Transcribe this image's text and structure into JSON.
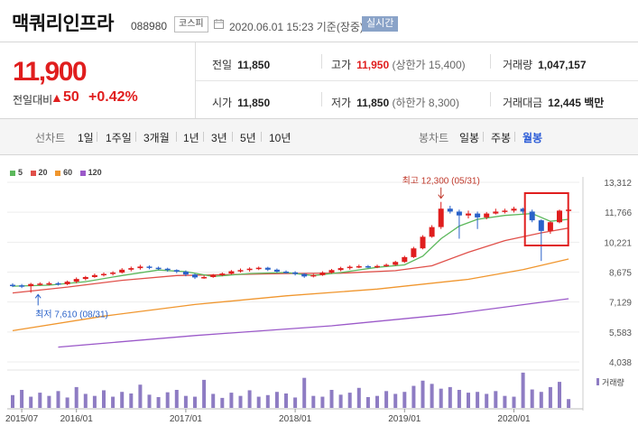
{
  "stock": {
    "name": "맥쿼리인프라",
    "code": "088980",
    "market": "코스피",
    "datetime": "2020.06.01 15:23 기준(장중)",
    "realtime_label": "실시간",
    "price": "11,900",
    "change_label": "전일대비",
    "change_arrow": "▲",
    "change_value": "50",
    "change_pct": "+0.42%"
  },
  "quote": {
    "prev_close": {
      "label": "전일",
      "value": "11,850"
    },
    "high": {
      "label": "고가",
      "value": "11,950",
      "extra": "(상한가 15,400)"
    },
    "volume": {
      "label": "거래량",
      "value": "1,047,157"
    },
    "open": {
      "label": "시가",
      "value": "11,850"
    },
    "low": {
      "label": "저가",
      "value": "11,850",
      "extra": "(하한가 8,300)"
    },
    "amount": {
      "label": "거래대금",
      "value": "12,445 백만"
    }
  },
  "tabs": {
    "line_label": "선차트",
    "line_items": [
      "1일",
      "1주일",
      "3개월",
      "1년",
      "3년",
      "5년",
      "10년"
    ],
    "candle_label": "봉차트",
    "candle_items": [
      "일봉",
      "주봉",
      "월봉"
    ],
    "candle_active": "월봉"
  },
  "colors": {
    "up": "#e01e1e",
    "down": "#2a62c9",
    "ma5": "#5cb85c",
    "ma20": "#e0504a",
    "ma60": "#f0962e",
    "ma120": "#9b59c9",
    "volume": "#8e7cc3"
  },
  "chart_data": {
    "type": "candlestick",
    "period": "monthly",
    "ma_legend": [
      "5",
      "20",
      "60",
      "120"
    ],
    "y_ticks": [
      "13,312",
      "11,766",
      "10,221",
      "8,675",
      "7,129",
      "5,583",
      "4,038"
    ],
    "x_ticks": [
      "2015/07",
      "2016/01",
      "2017/01",
      "2018/01",
      "2019/01",
      "2020/01"
    ],
    "volume_label": "거래량",
    "annotations": {
      "high": "최고 12,300 (05/31)",
      "low": "최저 7,610 (08/31)"
    },
    "candles": [
      {
        "d": "2015/06",
        "o": 8020,
        "c": 7990,
        "h": 8100,
        "l": 7900
      },
      {
        "d": "2015/07",
        "o": 7990,
        "c": 7950,
        "h": 8060,
        "l": 7850
      },
      {
        "d": "2015/08",
        "o": 7950,
        "c": 8060,
        "h": 8120,
        "l": 7610
      },
      {
        "d": "2015/09",
        "o": 8060,
        "c": 8080,
        "h": 8150,
        "l": 7980
      },
      {
        "d": "2015/10",
        "o": 8080,
        "c": 8100,
        "h": 8180,
        "l": 8000
      },
      {
        "d": "2015/11",
        "o": 8100,
        "c": 8050,
        "h": 8160,
        "l": 7980
      },
      {
        "d": "2015/12",
        "o": 8050,
        "c": 8180,
        "h": 8240,
        "l": 8000
      },
      {
        "d": "2016/01",
        "o": 8180,
        "c": 8320,
        "h": 8400,
        "l": 8100
      },
      {
        "d": "2016/02",
        "o": 8320,
        "c": 8420,
        "h": 8480,
        "l": 8250
      },
      {
        "d": "2016/03",
        "o": 8420,
        "c": 8520,
        "h": 8600,
        "l": 8380
      },
      {
        "d": "2016/04",
        "o": 8520,
        "c": 8580,
        "h": 8660,
        "l": 8450
      },
      {
        "d": "2016/05",
        "o": 8580,
        "c": 8650,
        "h": 8720,
        "l": 8500
      },
      {
        "d": "2016/06",
        "o": 8650,
        "c": 8800,
        "h": 8880,
        "l": 8600
      },
      {
        "d": "2016/07",
        "o": 8800,
        "c": 8880,
        "h": 8960,
        "l": 8720
      },
      {
        "d": "2016/08",
        "o": 8880,
        "c": 8960,
        "h": 9050,
        "l": 8800
      },
      {
        "d": "2016/09",
        "o": 8960,
        "c": 8900,
        "h": 9020,
        "l": 8820
      },
      {
        "d": "2016/10",
        "o": 8900,
        "c": 8850,
        "h": 8960,
        "l": 8780
      },
      {
        "d": "2016/11",
        "o": 8850,
        "c": 8780,
        "h": 8900,
        "l": 8700
      },
      {
        "d": "2016/12",
        "o": 8780,
        "c": 8700,
        "h": 8820,
        "l": 8620
      },
      {
        "d": "2017/01",
        "o": 8700,
        "c": 8550,
        "h": 8760,
        "l": 8460
      },
      {
        "d": "2017/02",
        "o": 8550,
        "c": 8400,
        "h": 8600,
        "l": 8320
      },
      {
        "d": "2017/03",
        "o": 8400,
        "c": 8420,
        "h": 8500,
        "l": 8330
      },
      {
        "d": "2017/04",
        "o": 8420,
        "c": 8520,
        "h": 8580,
        "l": 8380
      },
      {
        "d": "2017/05",
        "o": 8520,
        "c": 8600,
        "h": 8660,
        "l": 8460
      },
      {
        "d": "2017/06",
        "o": 8600,
        "c": 8720,
        "h": 8780,
        "l": 8550
      },
      {
        "d": "2017/07",
        "o": 8720,
        "c": 8780,
        "h": 8860,
        "l": 8650
      },
      {
        "d": "2017/08",
        "o": 8780,
        "c": 8850,
        "h": 8920,
        "l": 8700
      },
      {
        "d": "2017/09",
        "o": 8850,
        "c": 8900,
        "h": 8960,
        "l": 8780
      },
      {
        "d": "2017/10",
        "o": 8900,
        "c": 8800,
        "h": 8950,
        "l": 8730
      },
      {
        "d": "2017/11",
        "o": 8800,
        "c": 8700,
        "h": 8860,
        "l": 8640
      },
      {
        "d": "2017/12",
        "o": 8700,
        "c": 8660,
        "h": 8760,
        "l": 8600
      },
      {
        "d": "2018/01",
        "o": 8660,
        "c": 8580,
        "h": 8720,
        "l": 8500
      },
      {
        "d": "2018/02",
        "o": 8580,
        "c": 8450,
        "h": 8620,
        "l": 8380
      },
      {
        "d": "2018/03",
        "o": 8450,
        "c": 8520,
        "h": 8580,
        "l": 8400
      },
      {
        "d": "2018/04",
        "o": 8520,
        "c": 8650,
        "h": 8720,
        "l": 8480
      },
      {
        "d": "2018/05",
        "o": 8650,
        "c": 8780,
        "h": 8840,
        "l": 8600
      },
      {
        "d": "2018/06",
        "o": 8780,
        "c": 8880,
        "h": 8950,
        "l": 8720
      },
      {
        "d": "2018/07",
        "o": 8880,
        "c": 8950,
        "h": 9020,
        "l": 8800
      },
      {
        "d": "2018/08",
        "o": 8950,
        "c": 8980,
        "h": 9060,
        "l": 8880
      },
      {
        "d": "2018/09",
        "o": 8980,
        "c": 8940,
        "h": 9040,
        "l": 8880
      },
      {
        "d": "2018/10",
        "o": 8940,
        "c": 8990,
        "h": 9060,
        "l": 8880
      },
      {
        "d": "2018/11",
        "o": 8990,
        "c": 9050,
        "h": 9120,
        "l": 8950
      },
      {
        "d": "2018/12",
        "o": 9050,
        "c": 9200,
        "h": 9260,
        "l": 9000
      },
      {
        "d": "2019/01",
        "o": 9200,
        "c": 9450,
        "h": 9520,
        "l": 9150
      },
      {
        "d": "2019/02",
        "o": 9450,
        "c": 9900,
        "h": 9980,
        "l": 9400
      },
      {
        "d": "2019/03",
        "o": 9900,
        "c": 10500,
        "h": 10580,
        "l": 9850
      },
      {
        "d": "2019/04",
        "o": 10500,
        "c": 11000,
        "h": 11100,
        "l": 10450
      },
      {
        "d": "2019/05",
        "o": 11000,
        "c": 11950,
        "h": 12300,
        "l": 10900
      },
      {
        "d": "2019/06",
        "o": 11950,
        "c": 11800,
        "h": 12100,
        "l": 11700
      },
      {
        "d": "2019/07",
        "o": 11800,
        "c": 11600,
        "h": 11900,
        "l": 10400
      },
      {
        "d": "2019/08",
        "o": 11600,
        "c": 11700,
        "h": 11850,
        "l": 11450
      },
      {
        "d": "2019/09",
        "o": 11700,
        "c": 11500,
        "h": 11800,
        "l": 10900
      },
      {
        "d": "2019/10",
        "o": 11500,
        "c": 11700,
        "h": 11780,
        "l": 11400
      },
      {
        "d": "2019/11",
        "o": 11700,
        "c": 11800,
        "h": 11950,
        "l": 11650
      },
      {
        "d": "2019/12",
        "o": 11800,
        "c": 11850,
        "h": 11950,
        "l": 11700
      },
      {
        "d": "2020/01",
        "o": 11850,
        "c": 11950,
        "h": 12050,
        "l": 11750
      },
      {
        "d": "2020/02",
        "o": 11950,
        "c": 11800,
        "h": 12000,
        "l": 11700
      },
      {
        "d": "2020/03",
        "o": 11800,
        "c": 11350,
        "h": 11900,
        "l": 11250
      },
      {
        "d": "2020/04",
        "o": 11350,
        "c": 10800,
        "h": 11400,
        "l": 9250
      },
      {
        "d": "2020/05",
        "o": 10800,
        "c": 11250,
        "h": 11300,
        "l": 10650
      },
      {
        "d": "2020/06",
        "o": 11250,
        "c": 11850,
        "h": 11900,
        "l": 11200
      },
      {
        "d": "2020/07",
        "o": 11850,
        "c": 11900,
        "h": 11950,
        "l": 11850
      }
    ],
    "volumes": [
      32,
      45,
      28,
      38,
      30,
      42,
      26,
      52,
      35,
      30,
      44,
      28,
      40,
      36,
      58,
      33,
      27,
      39,
      45,
      30,
      28,
      70,
      35,
      25,
      38,
      30,
      44,
      28,
      32,
      40,
      36,
      26,
      75,
      30,
      28,
      45,
      33,
      38,
      50,
      27,
      30,
      42,
      35,
      40,
      55,
      68,
      60,
      48,
      52,
      45,
      38,
      40,
      35,
      42,
      30,
      28,
      88,
      46,
      40,
      52,
      65,
      22
    ],
    "ma5": [
      {
        "i": 0,
        "v": 7950
      },
      {
        "i": 4,
        "v": 8000
      },
      {
        "i": 8,
        "v": 8180
      },
      {
        "i": 12,
        "v": 8500
      },
      {
        "i": 16,
        "v": 8780
      },
      {
        "i": 19,
        "v": 8700
      },
      {
        "i": 22,
        "v": 8450
      },
      {
        "i": 26,
        "v": 8600
      },
      {
        "i": 30,
        "v": 8650
      },
      {
        "i": 33,
        "v": 8500
      },
      {
        "i": 36,
        "v": 8650
      },
      {
        "i": 40,
        "v": 8920
      },
      {
        "i": 43,
        "v": 9050
      },
      {
        "i": 45,
        "v": 9500
      },
      {
        "i": 47,
        "v": 10400
      },
      {
        "i": 49,
        "v": 11050
      },
      {
        "i": 51,
        "v": 11400
      },
      {
        "i": 54,
        "v": 11600
      },
      {
        "i": 57,
        "v": 11700
      },
      {
        "i": 59,
        "v": 11300
      },
      {
        "i": 61,
        "v": 11400
      }
    ],
    "ma20": [
      {
        "i": 0,
        "v": 7600
      },
      {
        "i": 6,
        "v": 7900
      },
      {
        "i": 12,
        "v": 8250
      },
      {
        "i": 18,
        "v": 8500
      },
      {
        "i": 24,
        "v": 8550
      },
      {
        "i": 30,
        "v": 8600
      },
      {
        "i": 36,
        "v": 8620
      },
      {
        "i": 42,
        "v": 8750
      },
      {
        "i": 46,
        "v": 9000
      },
      {
        "i": 50,
        "v": 9700
      },
      {
        "i": 54,
        "v": 10300
      },
      {
        "i": 58,
        "v": 10700
      },
      {
        "i": 61,
        "v": 10950
      }
    ],
    "ma60": [
      {
        "i": 0,
        "v": 5650
      },
      {
        "i": 10,
        "v": 6400
      },
      {
        "i": 20,
        "v": 7000
      },
      {
        "i": 30,
        "v": 7450
      },
      {
        "i": 40,
        "v": 7800
      },
      {
        "i": 50,
        "v": 8300
      },
      {
        "i": 56,
        "v": 8800
      },
      {
        "i": 61,
        "v": 9350
      }
    ],
    "ma120": [
      {
        "i": 5,
        "v": 4800
      },
      {
        "i": 20,
        "v": 5400
      },
      {
        "i": 35,
        "v": 5900
      },
      {
        "i": 48,
        "v": 6500
      },
      {
        "i": 61,
        "v": 7300
      }
    ]
  }
}
